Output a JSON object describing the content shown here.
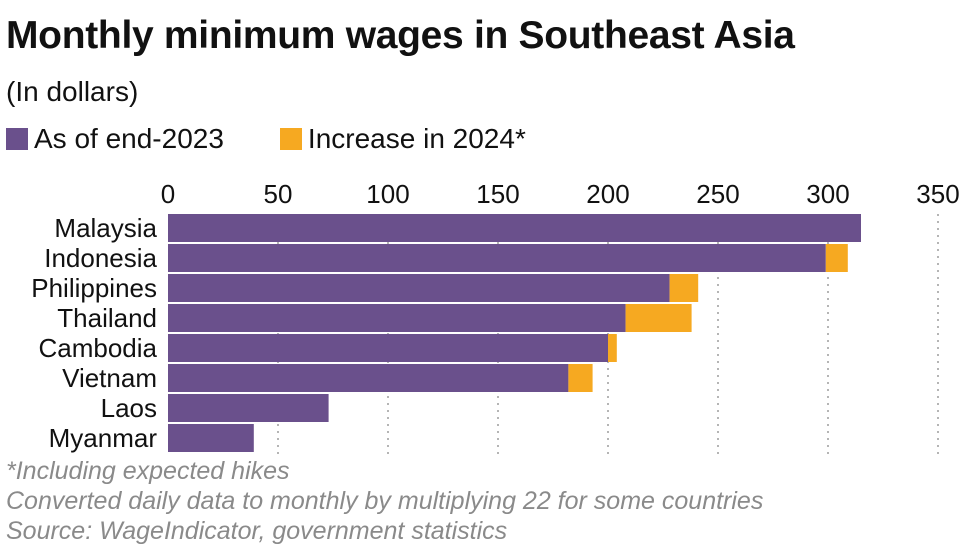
{
  "chart_data": {
    "type": "bar",
    "orientation": "horizontal",
    "stacked": true,
    "title": "Monthly minimum wages in Southeast Asia",
    "subtitle": "(In dollars)",
    "categories": [
      "Malaysia",
      "Indonesia",
      "Philippines",
      "Thailand",
      "Cambodia",
      "Vietnam",
      "Laos",
      "Myanmar"
    ],
    "series": [
      {
        "name": "As of end-2023",
        "color": "#6a508c",
        "values": [
          315,
          299,
          228,
          208,
          200,
          182,
          73,
          39
        ]
      },
      {
        "name": "Increase in 2024*",
        "color": "#f6a921",
        "values": [
          0,
          10,
          13,
          30,
          4,
          11,
          0,
          0
        ]
      }
    ],
    "xlim": [
      0,
      350
    ],
    "xticks": [
      "0",
      "50",
      "100",
      "150",
      "200",
      "250",
      "300",
      "350"
    ],
    "xaxis_position": "top",
    "grid": "vertical dotted",
    "legend_position": "top-left"
  },
  "notes": [
    "*Including expected hikes",
    "Converted daily data to monthly by multiplying 22 for some countries",
    "Source: WageIndicator, government statistics"
  ]
}
